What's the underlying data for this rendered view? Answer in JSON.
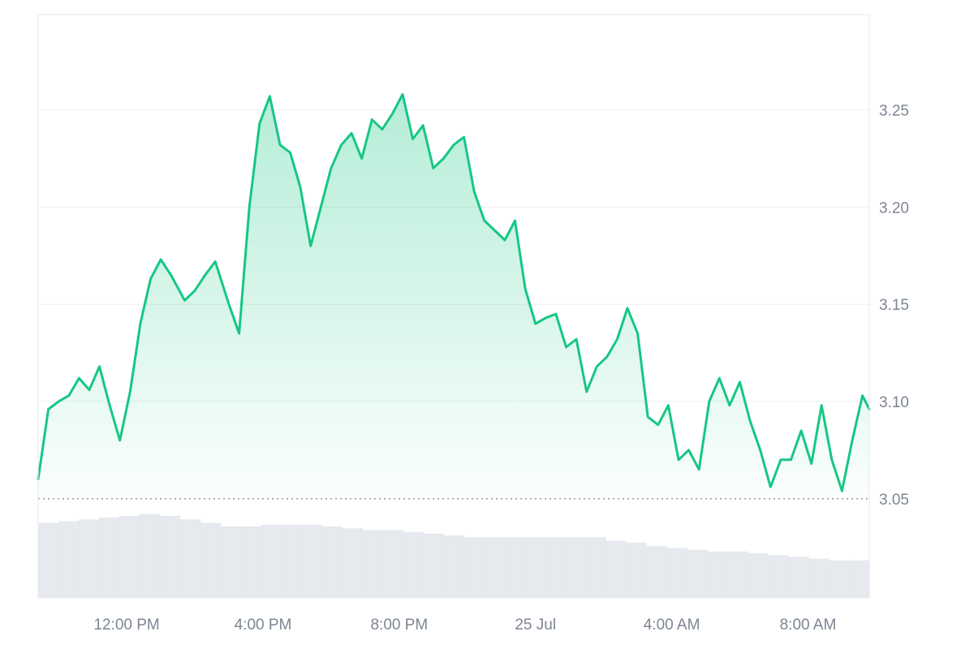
{
  "chart_data": {
    "type": "area",
    "title": "",
    "xlabel": "",
    "ylabel": "",
    "x_ticks": [
      "12:00 PM",
      "4:00 PM",
      "8:00 PM",
      "25 Jul",
      "4:00 AM",
      "8:00 AM"
    ],
    "y_ticks": [
      "3.05",
      "3.10",
      "3.15",
      "3.20",
      "3.25"
    ],
    "ylim": [
      2.999,
      3.299
    ],
    "x_range_hours": [
      -2.6,
      21.8
    ],
    "baseline_value": 3.05,
    "grid": "horizontal",
    "line_color": "#16c784",
    "fill_color": "#16c784",
    "volume_color": "#dde3ea",
    "series": [
      {
        "x": [
          -2.6,
          -2.3,
          -2.0,
          -1.7,
          -1.4,
          -1.1,
          -0.8,
          -0.5,
          -0.2,
          0.1,
          0.4,
          0.7,
          1.0,
          1.3,
          1.7,
          2.0,
          2.3,
          2.6,
          3.0,
          3.3,
          3.6,
          3.9,
          4.2,
          4.5,
          4.8,
          5.1,
          5.4,
          5.7,
          6.0,
          6.3,
          6.6,
          6.9,
          7.2,
          7.5,
          7.8,
          8.1,
          8.4,
          8.7,
          9.0,
          9.3,
          9.6,
          9.9,
          10.2,
          10.5,
          10.8,
          11.1,
          11.4,
          11.7,
          12.0,
          12.3,
          12.6,
          12.9,
          13.2,
          13.5,
          13.8,
          14.1,
          14.4,
          14.7,
          15.0,
          15.3,
          15.6,
          15.9,
          16.2,
          16.5,
          16.8,
          17.1,
          17.4,
          17.7,
          18.0,
          18.3,
          18.6,
          18.9,
          19.2,
          19.5,
          19.8,
          20.1,
          20.4,
          20.7,
          21.0,
          21.3,
          21.6,
          21.8
        ],
        "values": [
          3.06,
          3.096,
          3.1,
          3.103,
          3.112,
          3.106,
          3.118,
          3.098,
          3.08,
          3.105,
          3.14,
          3.163,
          3.173,
          3.165,
          3.152,
          3.157,
          3.165,
          3.172,
          3.15,
          3.135,
          3.2,
          3.243,
          3.257,
          3.232,
          3.228,
          3.21,
          3.18,
          3.2,
          3.22,
          3.232,
          3.238,
          3.225,
          3.245,
          3.24,
          3.248,
          3.258,
          3.235,
          3.242,
          3.22,
          3.225,
          3.232,
          3.236,
          3.208,
          3.193,
          3.188,
          3.183,
          3.193,
          3.158,
          3.14,
          3.143,
          3.145,
          3.128,
          3.132,
          3.105,
          3.118,
          3.123,
          3.132,
          3.148,
          3.135,
          3.092,
          3.088,
          3.098,
          3.07,
          3.075,
          3.065,
          3.1,
          3.112,
          3.098,
          3.11,
          3.09,
          3.075,
          3.056,
          3.07,
          3.07,
          3.085,
          3.068,
          3.098,
          3.07,
          3.054,
          3.08,
          3.103,
          3.096
        ]
      }
    ],
    "volume": [
      0.42,
      0.43,
      0.44,
      0.45,
      0.46,
      0.47,
      0.46,
      0.44,
      0.42,
      0.4,
      0.4,
      0.41,
      0.41,
      0.41,
      0.4,
      0.39,
      0.38,
      0.38,
      0.37,
      0.36,
      0.35,
      0.34,
      0.34,
      0.34,
      0.34,
      0.34,
      0.34,
      0.34,
      0.32,
      0.31,
      0.29,
      0.28,
      0.27,
      0.26,
      0.26,
      0.25,
      0.24,
      0.23,
      0.22,
      0.21,
      0.21
    ]
  }
}
